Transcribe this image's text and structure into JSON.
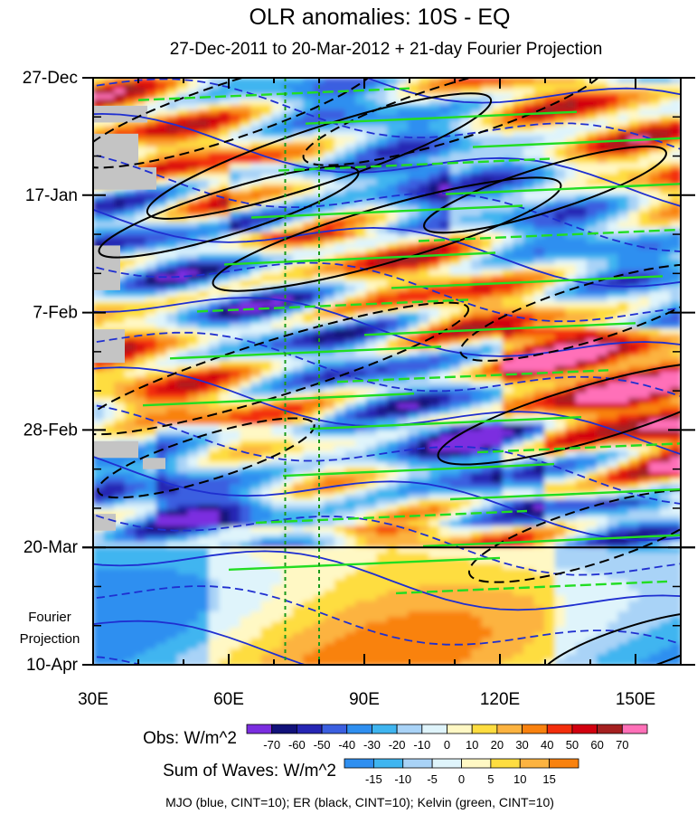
{
  "chart_data": {
    "type": "heatmap",
    "title": "OLR anomalies: 10S - EQ",
    "subtitle": "27-Dec-2011 to 20-Mar-2012 + 21-day Fourier Projection",
    "x_ticks": [
      {
        "label": "30E",
        "value": 30
      },
      {
        "label": "60E",
        "value": 60
      },
      {
        "label": "90E",
        "value": 90
      },
      {
        "label": "120E",
        "value": 120
      },
      {
        "label": "150E",
        "value": 150
      }
    ],
    "xlim": [
      30,
      160
    ],
    "y_ticks": [
      {
        "label": "27-Dec",
        "day": 0
      },
      {
        "label": "17-Jan",
        "day": 21
      },
      {
        "label": "7-Feb",
        "day": 42
      },
      {
        "label": "28-Feb",
        "day": 63
      },
      {
        "label": "20-Mar",
        "day": 84
      },
      {
        "label": "10-Apr",
        "day": 105
      }
    ],
    "ylim_days": [
      0,
      105
    ],
    "projection_start_day": 84,
    "projection_label_1": "Fourier",
    "projection_label_2": "Projection",
    "reference_longitudes": [
      72.5,
      80
    ],
    "obs_legend": {
      "label": "Obs: W/m^2",
      "levels": [
        "-70",
        "-60",
        "-50",
        "-40",
        "-30",
        "-20",
        "-10",
        "0",
        "10",
        "20",
        "30",
        "40",
        "50",
        "60",
        "70"
      ],
      "colors": [
        "#7b2ee0",
        "#12127a",
        "#2626b4",
        "#3b5fe0",
        "#2f8ff0",
        "#3fb5f0",
        "#a9d3f7",
        "#dff4fb",
        "#fff8c4",
        "#fedd40",
        "#fcb340",
        "#f9820f",
        "#f32e0c",
        "#d2000f",
        "#a52020",
        "#ff70b8"
      ]
    },
    "waves_legend": {
      "label": "Sum of Waves: W/m^2",
      "levels": [
        "-15",
        "-10",
        "-5",
        "0",
        "5",
        "10",
        "15"
      ],
      "colors": [
        "#2f8ff0",
        "#3fb5f0",
        "#a9d3f7",
        "#dff4fb",
        "#fff8c4",
        "#fedd40",
        "#fcb340",
        "#f9820f"
      ]
    },
    "contour_note": "MJO (blue, CINT=10); ER (black, CINT=10); Kelvin (green, CINT=10)",
    "contours": {
      "mjo": {
        "color": "#1f2fd0"
      },
      "er": {
        "color": "#000000"
      },
      "kelvin": {
        "color": "#22dd22"
      }
    }
  }
}
